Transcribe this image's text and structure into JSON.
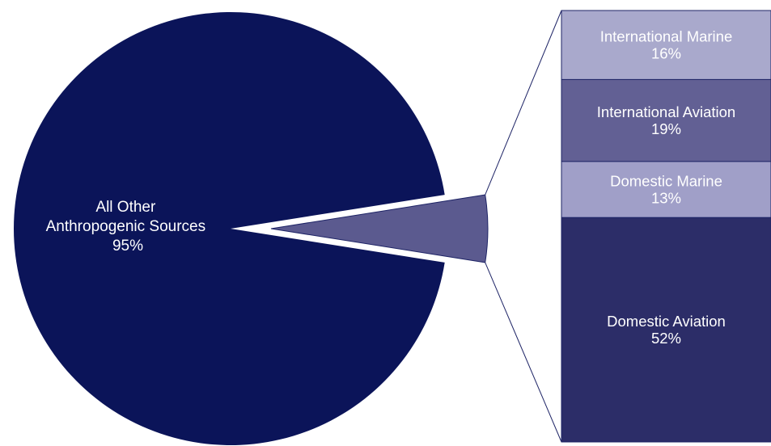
{
  "chart_data": {
    "type": "bar-of-pie",
    "title": "",
    "pie": [
      {
        "label_lines": [
          "All Other",
          "Anthropogenic Sources"
        ],
        "value_label": "95%",
        "value": 95,
        "color": "#0b1459"
      },
      {
        "label_lines": [],
        "value_label": "",
        "value": 5,
        "color": "#5b5a8f"
      }
    ],
    "breakdown": [
      {
        "label": "International Marine",
        "value_label": "16%",
        "value": 16,
        "color": "#a9a9cc"
      },
      {
        "label": "International Aviation",
        "value_label": "19%",
        "value": 19,
        "color": "#626094"
      },
      {
        "label": "Domestic Marine",
        "value_label": "13%",
        "value": 13,
        "color": "#a09fc8"
      },
      {
        "label": "Domestic Aviation",
        "value_label": "52%",
        "value": 52,
        "color": "#2c2d68"
      }
    ],
    "connector_color": "#1e2466"
  }
}
